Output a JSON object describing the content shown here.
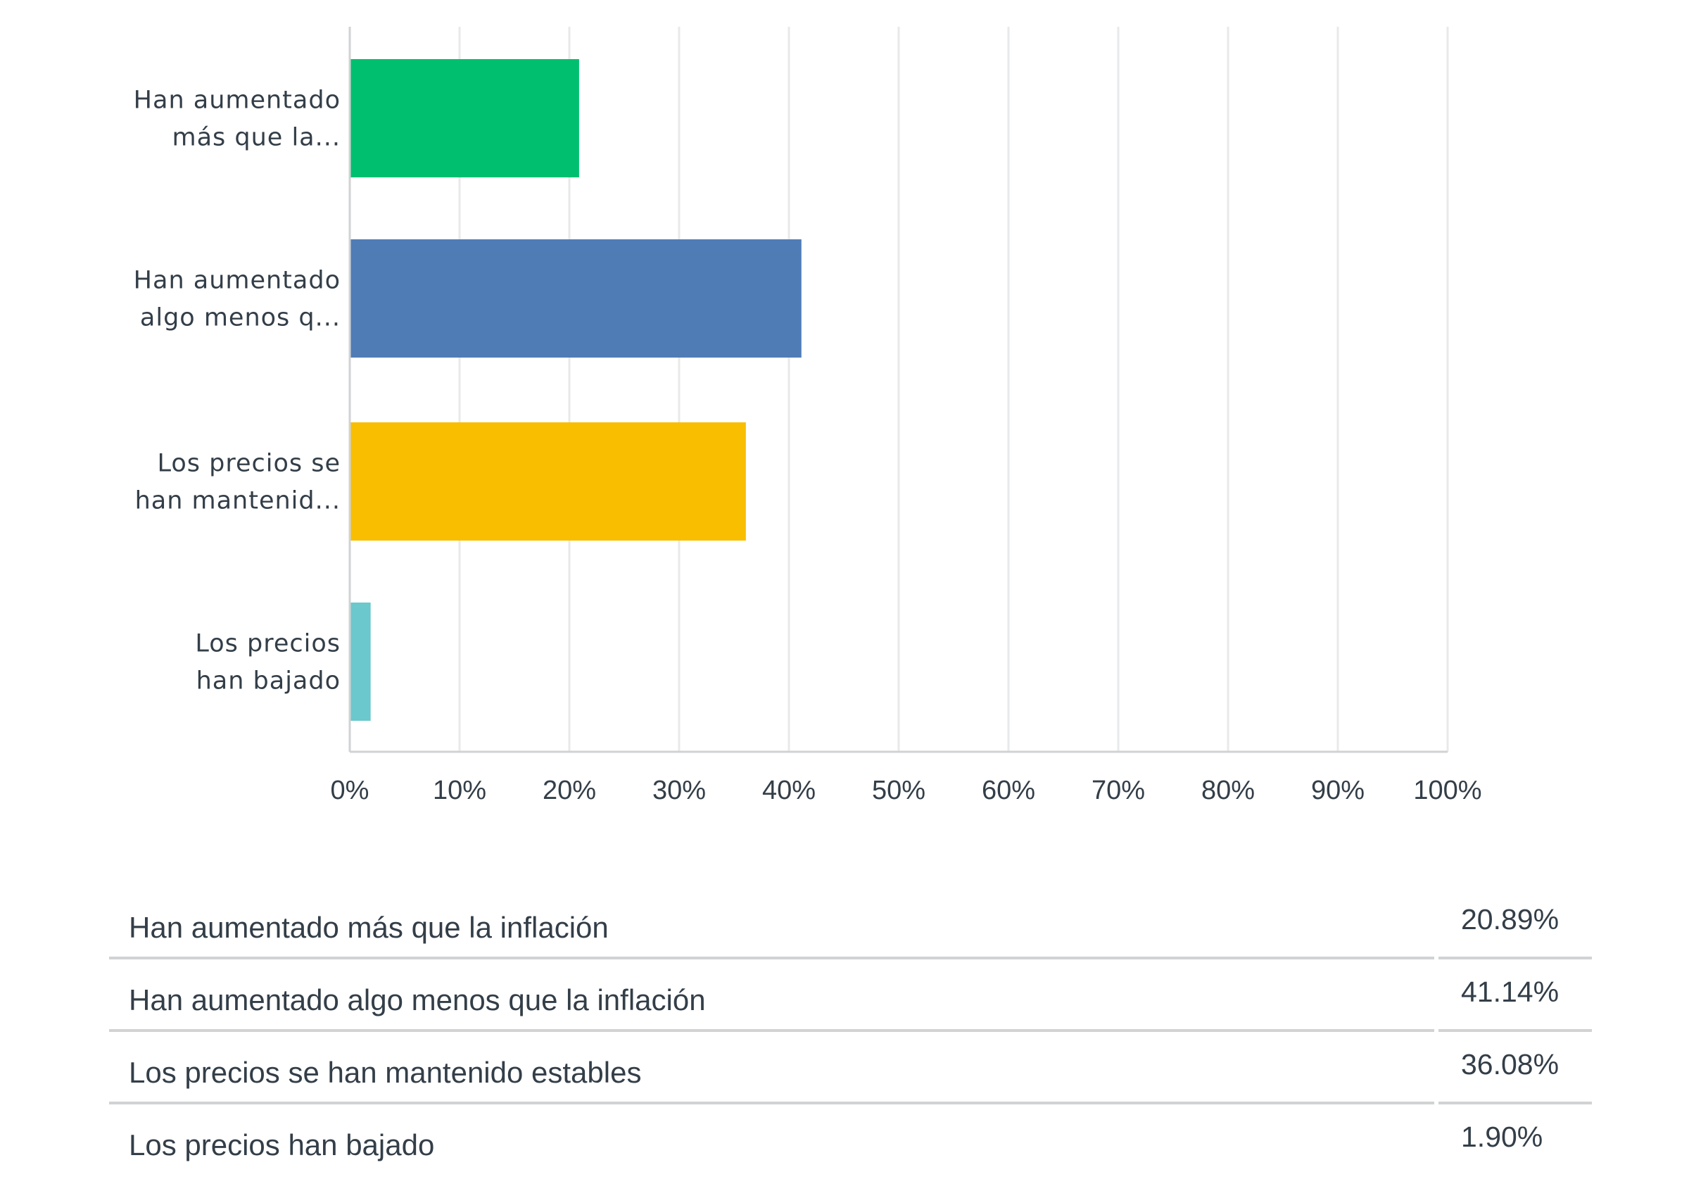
{
  "chart_data": {
    "type": "bar",
    "orientation": "horizontal",
    "categories": [
      [
        "Han aumentado",
        "más que la..."
      ],
      [
        "Han aumentado",
        "algo menos q..."
      ],
      [
        "Los precios se",
        "han mantenid..."
      ],
      [
        "Los precios",
        "han bajado"
      ]
    ],
    "values": [
      20.89,
      41.14,
      36.08,
      1.9
    ],
    "colors": [
      "#00bf6f",
      "#507cb6",
      "#f9be00",
      "#6bc8cd"
    ],
    "xlim": [
      0,
      100
    ],
    "xticks": [
      "0%",
      "10%",
      "20%",
      "30%",
      "40%",
      "50%",
      "60%",
      "70%",
      "80%",
      "90%",
      "100%"
    ],
    "grid": true,
    "title": "",
    "xlabel": "",
    "ylabel": "",
    "table": [
      {
        "label": "Han aumentado más que la inflación",
        "value": "20.89%"
      },
      {
        "label": "Han aumentado algo menos que la inflación",
        "value": "41.14%"
      },
      {
        "label": "Los precios se han mantenido estables",
        "value": "36.08%"
      },
      {
        "label": "Los precios han bajado",
        "value": "1.90%"
      }
    ]
  }
}
